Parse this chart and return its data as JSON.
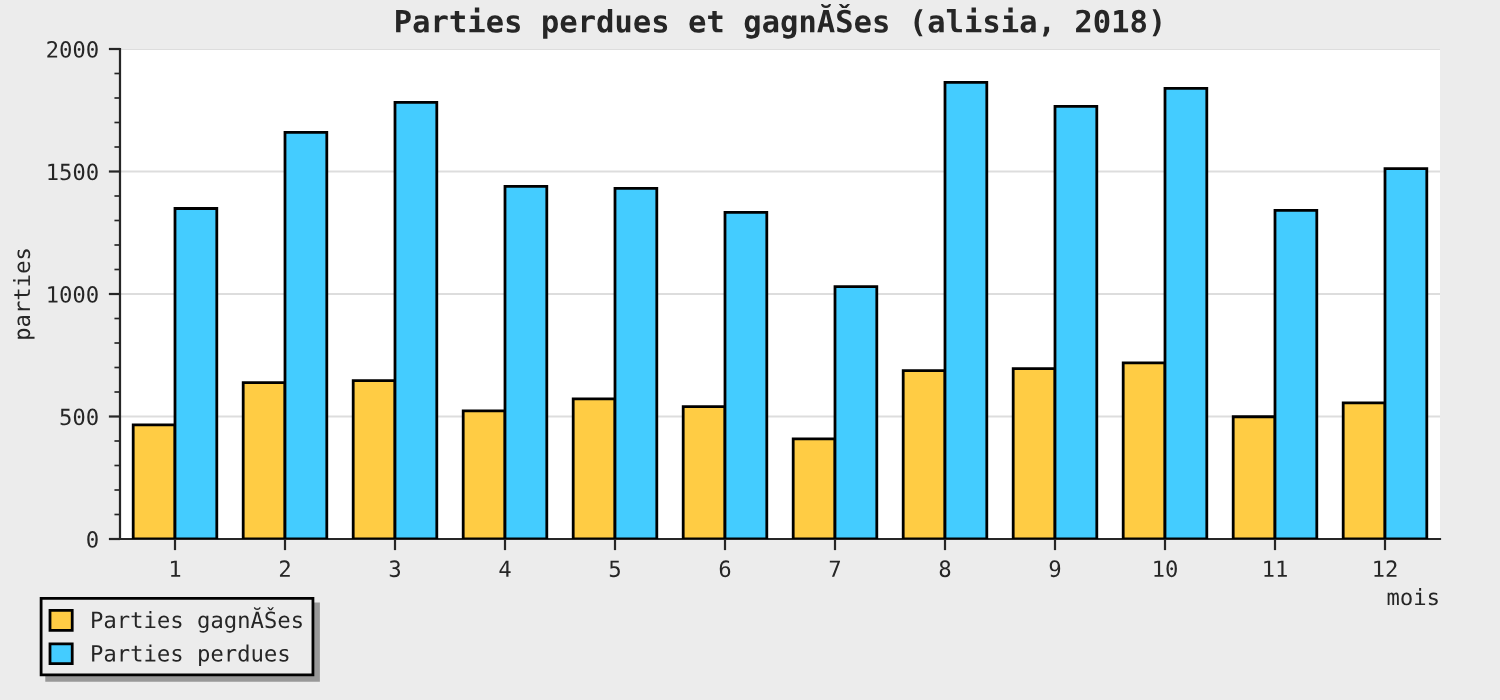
{
  "chart_data": {
    "type": "bar",
    "title": "Parties perdues et gagnĂŠes (alisia, 2018)",
    "xlabel": "mois",
    "ylabel": "parties",
    "categories": [
      "1",
      "2",
      "3",
      "4",
      "5",
      "6",
      "7",
      "8",
      "9",
      "10",
      "11",
      "12"
    ],
    "series": [
      {
        "name": "Parties gagnĂŠes",
        "color": "#ffcc44",
        "values": [
          466,
          638,
          646,
          523,
          572,
          540,
          409,
          687,
          695,
          719,
          499,
          556
        ]
      },
      {
        "name": "Parties perdues",
        "color": "#44ccff",
        "values": [
          1349,
          1660,
          1782,
          1439,
          1431,
          1333,
          1030,
          1864,
          1766,
          1839,
          1341,
          1512
        ]
      }
    ],
    "ylim": [
      0,
      2000
    ],
    "yticks": [
      0,
      500,
      1000,
      1500,
      2000
    ],
    "grid": "y",
    "legend": "bottom left"
  }
}
